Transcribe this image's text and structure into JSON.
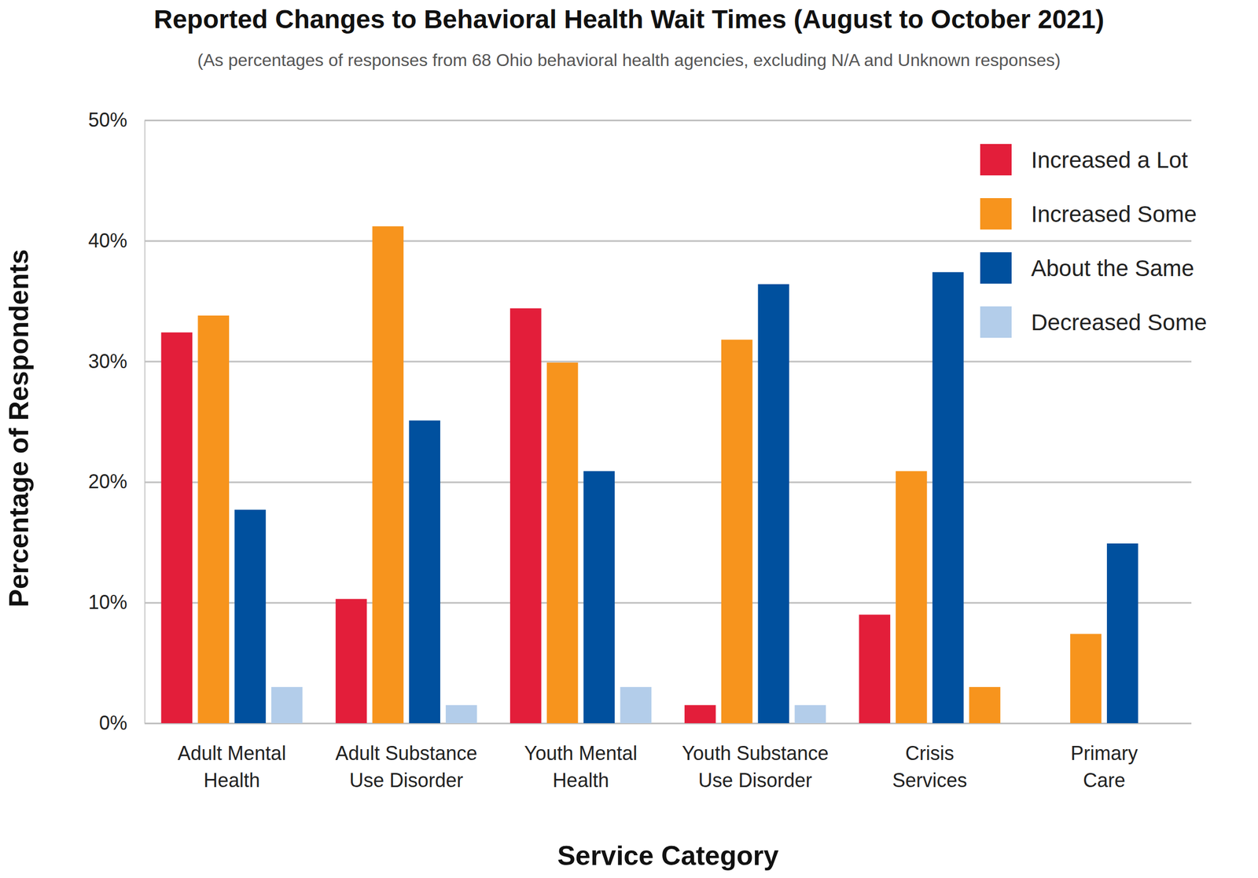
{
  "chart_data": {
    "type": "bar",
    "title": "Reported Changes to Behavioral Health Wait Times (August to October 2021)",
    "subtitle": "(As percentages of responses from 68 Ohio behavioral health agencies, excluding N/A and Unknown responses)",
    "x_label": "Service Category",
    "y_label": "Percentage of Respondents",
    "categories": [
      "Adult Mental Health",
      "Adult Substance Use Disorder",
      "Youth Mental Health",
      "Youth Substance Use Disorder",
      "Crisis Services",
      "Primary Care"
    ],
    "series": [
      {
        "name": "Increased a Lot",
        "color": "#e31e3a",
        "values": [
          32.4,
          10.3,
          34.4,
          1.5,
          9.0,
          null
        ]
      },
      {
        "name": "Increased Some",
        "color": "#f7941d",
        "values": [
          33.8,
          41.2,
          29.9,
          31.8,
          20.9,
          7.4
        ]
      },
      {
        "name": "About the Same",
        "color": "#00509e",
        "values": [
          17.7,
          25.1,
          20.9,
          36.4,
          37.4,
          14.9
        ]
      },
      {
        "name": "Decreased Some",
        "color": "#b3cdea",
        "colors": [
          "#b3cdea",
          "#b3cdea",
          "#b3cdea",
          "#b3cdea",
          "#f7941d",
          "#b3cdea"
        ],
        "values": [
          3.0,
          1.5,
          3.0,
          1.5,
          3.0,
          null
        ]
      }
    ],
    "ylim": [
      0,
      50
    ],
    "yticks": [
      {
        "value": 0,
        "label": "0%"
      },
      {
        "value": 10,
        "label": "10%"
      },
      {
        "value": 20,
        "label": "20%"
      },
      {
        "value": 30,
        "label": "30%"
      },
      {
        "value": 40,
        "label": "40%"
      },
      {
        "value": 50,
        "label": "50%"
      }
    ],
    "grid": true,
    "legend": "top-right"
  }
}
